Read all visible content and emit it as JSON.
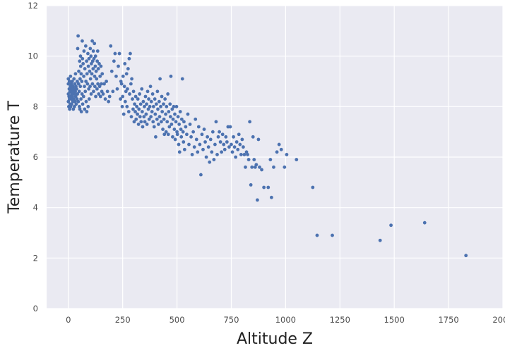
{
  "chart_data": {
    "type": "scatter",
    "title": "",
    "xlabel": "Altitude Z",
    "ylabel": "Temperature T",
    "xlim": [
      -100,
      2000
    ],
    "ylim": [
      0,
      12
    ],
    "xticks": [
      0,
      250,
      500,
      750,
      1000,
      1250,
      1500,
      1750,
      2000
    ],
    "yticks": [
      0,
      2,
      4,
      6,
      8,
      10,
      12
    ],
    "xtick_labels": [
      "0",
      "250",
      "500",
      "750",
      "1000",
      "1250",
      "1500",
      "1750",
      "2000"
    ],
    "ytick_labels": [
      "0",
      "2",
      "4",
      "6",
      "8",
      "10",
      "12"
    ],
    "grid": true,
    "colors": {
      "background": "#eaeaf2",
      "grid": "#ffffff",
      "point": "#4c72b0"
    },
    "points": [
      [
        0,
        8.2
      ],
      [
        0,
        8.5
      ],
      [
        0,
        8.9
      ],
      [
        0,
        9.1
      ],
      [
        2,
        8.0
      ],
      [
        3,
        8.4
      ],
      [
        4,
        8.7
      ],
      [
        5,
        8.3
      ],
      [
        5,
        9.0
      ],
      [
        6,
        7.9
      ],
      [
        7,
        8.6
      ],
      [
        8,
        8.1
      ],
      [
        9,
        8.8
      ],
      [
        10,
        8.4
      ],
      [
        10,
        9.2
      ],
      [
        11,
        8.0
      ],
      [
        12,
        8.6
      ],
      [
        13,
        8.3
      ],
      [
        14,
        8.9
      ],
      [
        15,
        8.5
      ],
      [
        16,
        8.1
      ],
      [
        17,
        8.7
      ],
      [
        18,
        9.0
      ],
      [
        19,
        8.4
      ],
      [
        20,
        8.2
      ],
      [
        21,
        8.8
      ],
      [
        22,
        8.5
      ],
      [
        23,
        7.9
      ],
      [
        24,
        8.6
      ],
      [
        25,
        8.3
      ],
      [
        26,
        9.1
      ],
      [
        27,
        8.7
      ],
      [
        28,
        8.0
      ],
      [
        29,
        8.5
      ],
      [
        30,
        8.9
      ],
      [
        31,
        8.2
      ],
      [
        32,
        8.6
      ],
      [
        33,
        9.3
      ],
      [
        34,
        8.4
      ],
      [
        35,
        8.8
      ],
      [
        36,
        8.1
      ],
      [
        38,
        8.7
      ],
      [
        40,
        8.3
      ],
      [
        41,
        9.0
      ],
      [
        42,
        8.5
      ],
      [
        43,
        10.3
      ],
      [
        45,
        10.8
      ],
      [
        46,
        8.2
      ],
      [
        47,
        8.9
      ],
      [
        48,
        9.4
      ],
      [
        50,
        8.6
      ],
      [
        51,
        8.0
      ],
      [
        52,
        9.8
      ],
      [
        53,
        7.9
      ],
      [
        54,
        9.1
      ],
      [
        55,
        8.8
      ],
      [
        56,
        10.0
      ],
      [
        57,
        9.6
      ],
      [
        58,
        8.3
      ],
      [
        59,
        9.3
      ],
      [
        60,
        7.8
      ],
      [
        62,
        9.0
      ],
      [
        63,
        8.5
      ],
      [
        64,
        10.6
      ],
      [
        65,
        9.9
      ],
      [
        66,
        8.1
      ],
      [
        68,
        9.7
      ],
      [
        70,
        8.4
      ],
      [
        71,
        9.2
      ],
      [
        72,
        10.2
      ],
      [
        74,
        8.8
      ],
      [
        75,
        7.9
      ],
      [
        76,
        9.5
      ],
      [
        78,
        8.6
      ],
      [
        80,
        10.4
      ],
      [
        81,
        9.0
      ],
      [
        82,
        8.2
      ],
      [
        84,
        9.8
      ],
      [
        85,
        7.8
      ],
      [
        86,
        9.3
      ],
      [
        88,
        8.9
      ],
      [
        90,
        10.1
      ],
      [
        91,
        8.0
      ],
      [
        92,
        9.6
      ],
      [
        94,
        8.7
      ],
      [
        95,
        9.9
      ],
      [
        96,
        8.3
      ],
      [
        98,
        9.4
      ],
      [
        100,
        8.8
      ],
      [
        101,
        10.3
      ],
      [
        102,
        9.1
      ],
      [
        104,
        10.0
      ],
      [
        105,
        8.5
      ],
      [
        106,
        9.7
      ],
      [
        108,
        9.3
      ],
      [
        110,
        10.6
      ],
      [
        111,
        8.9
      ],
      [
        112,
        9.8
      ],
      [
        114,
        9.5
      ],
      [
        115,
        10.2
      ],
      [
        116,
        8.6
      ],
      [
        118,
        9.9
      ],
      [
        120,
        10.5
      ],
      [
        121,
        9.2
      ],
      [
        122,
        8.8
      ],
      [
        124,
        9.6
      ],
      [
        125,
        10.0
      ],
      [
        126,
        8.4
      ],
      [
        128,
        9.4
      ],
      [
        130,
        9.1
      ],
      [
        132,
        8.7
      ],
      [
        133,
        9.8
      ],
      [
        135,
        10.2
      ],
      [
        136,
        8.9
      ],
      [
        138,
        9.5
      ],
      [
        140,
        8.5
      ],
      [
        142,
        9.7
      ],
      [
        144,
        8.8
      ],
      [
        146,
        9.2
      ],
      [
        148,
        8.4
      ],
      [
        150,
        9.6
      ],
      [
        152,
        8.9
      ],
      [
        154,
        8.6
      ],
      [
        156,
        9.3
      ],
      [
        160,
        8.5
      ],
      [
        165,
        8.9
      ],
      [
        170,
        8.3
      ],
      [
        175,
        9.0
      ],
      [
        180,
        8.6
      ],
      [
        185,
        8.2
      ],
      [
        190,
        8.4
      ],
      [
        195,
        10.4
      ],
      [
        200,
        9.4
      ],
      [
        205,
        8.6
      ],
      [
        210,
        9.8
      ],
      [
        215,
        10.1
      ],
      [
        220,
        9.2
      ],
      [
        225,
        8.7
      ],
      [
        230,
        9.6
      ],
      [
        235,
        10.1
      ],
      [
        240,
        8.3
      ],
      [
        242,
        9.0
      ],
      [
        245,
        8.9
      ],
      [
        248,
        8.0
      ],
      [
        250,
        8.4
      ],
      [
        252,
        9.2
      ],
      [
        255,
        7.7
      ],
      [
        258,
        8.8
      ],
      [
        260,
        9.7
      ],
      [
        262,
        8.2
      ],
      [
        265,
        8.6
      ],
      [
        268,
        9.3
      ],
      [
        270,
        8.0
      ],
      [
        272,
        8.7
      ],
      [
        275,
        9.5
      ],
      [
        278,
        7.8
      ],
      [
        280,
        9.9
      ],
      [
        282,
        8.5
      ],
      [
        285,
        10.1
      ],
      [
        288,
        8.9
      ],
      [
        290,
        7.6
      ],
      [
        292,
        9.1
      ],
      [
        295,
        8.3
      ],
      [
        298,
        7.9
      ],
      [
        300,
        8.6
      ],
      [
        303,
        7.4
      ],
      [
        305,
        8.1
      ],
      [
        308,
        7.8
      ],
      [
        310,
        8.4
      ],
      [
        312,
        7.5
      ],
      [
        315,
        8.0
      ],
      [
        318,
        7.7
      ],
      [
        320,
        8.3
      ],
      [
        323,
        7.3
      ],
      [
        325,
        7.9
      ],
      [
        328,
        8.5
      ],
      [
        330,
        7.6
      ],
      [
        333,
        8.1
      ],
      [
        335,
        7.4
      ],
      [
        338,
        8.7
      ],
      [
        340,
        7.8
      ],
      [
        342,
        7.2
      ],
      [
        345,
        8.2
      ],
      [
        348,
        7.6
      ],
      [
        350,
        8.0
      ],
      [
        352,
        7.4
      ],
      [
        355,
        8.4
      ],
      [
        358,
        7.7
      ],
      [
        360,
        8.1
      ],
      [
        362,
        7.3
      ],
      [
        365,
        8.6
      ],
      [
        368,
        7.9
      ],
      [
        370,
        8.3
      ],
      [
        372,
        7.5
      ],
      [
        375,
        8.0
      ],
      [
        378,
        8.8
      ],
      [
        380,
        7.6
      ],
      [
        382,
        8.2
      ],
      [
        385,
        7.8
      ],
      [
        388,
        8.5
      ],
      [
        390,
        7.4
      ],
      [
        392,
        8.0
      ],
      [
        395,
        7.2
      ],
      [
        398,
        8.3
      ],
      [
        400,
        7.7
      ],
      [
        402,
        6.8
      ],
      [
        405,
        8.1
      ],
      [
        408,
        7.5
      ],
      [
        410,
        8.6
      ],
      [
        412,
        7.9
      ],
      [
        415,
        7.3
      ],
      [
        418,
        8.2
      ],
      [
        420,
        7.6
      ],
      [
        422,
        9.1
      ],
      [
        425,
        8.0
      ],
      [
        428,
        7.4
      ],
      [
        430,
        8.4
      ],
      [
        432,
        7.8
      ],
      [
        435,
        7.1
      ],
      [
        438,
        8.1
      ],
      [
        440,
        7.5
      ],
      [
        442,
        6.9
      ],
      [
        445,
        8.3
      ],
      [
        448,
        7.7
      ],
      [
        450,
        7.0
      ],
      [
        452,
        8.0
      ],
      [
        455,
        7.4
      ],
      [
        458,
        8.5
      ],
      [
        460,
        6.9
      ],
      [
        462,
        7.8
      ],
      [
        465,
        7.2
      ],
      [
        468,
        8.1
      ],
      [
        470,
        7.6
      ],
      [
        472,
        9.2
      ],
      [
        475,
        7.3
      ],
      [
        478,
        7.9
      ],
      [
        480,
        6.8
      ],
      [
        482,
        7.5
      ],
      [
        485,
        8.0
      ],
      [
        488,
        7.1
      ],
      [
        490,
        7.7
      ],
      [
        492,
        6.7
      ],
      [
        495,
        7.4
      ],
      [
        498,
        8.0
      ],
      [
        500,
        7.0
      ],
      [
        502,
        6.9
      ],
      [
        505,
        7.6
      ],
      [
        508,
        6.5
      ],
      [
        510,
        7.3
      ],
      [
        512,
        6.2
      ],
      [
        515,
        7.8
      ],
      [
        518,
        7.1
      ],
      [
        520,
        6.8
      ],
      [
        522,
        7.5
      ],
      [
        525,
        9.1
      ],
      [
        528,
        7.0
      ],
      [
        530,
        6.6
      ],
      [
        532,
        7.4
      ],
      [
        535,
        6.3
      ],
      [
        540,
        7.2
      ],
      [
        545,
        6.9
      ],
      [
        550,
        7.7
      ],
      [
        555,
        6.5
      ],
      [
        560,
        7.3
      ],
      [
        565,
        6.8
      ],
      [
        570,
        6.1
      ],
      [
        575,
        7.0
      ],
      [
        580,
        6.4
      ],
      [
        585,
        7.5
      ],
      [
        590,
        6.7
      ],
      [
        595,
        6.2
      ],
      [
        600,
        7.2
      ],
      [
        605,
        6.5
      ],
      [
        610,
        5.3
      ],
      [
        615,
        6.9
      ],
      [
        620,
        6.3
      ],
      [
        625,
        7.1
      ],
      [
        630,
        6.6
      ],
      [
        635,
        6.0
      ],
      [
        640,
        6.8
      ],
      [
        645,
        6.4
      ],
      [
        650,
        5.8
      ],
      [
        655,
        6.7
      ],
      [
        660,
        6.2
      ],
      [
        665,
        7.0
      ],
      [
        670,
        5.9
      ],
      [
        675,
        6.5
      ],
      [
        680,
        7.4
      ],
      [
        685,
        6.1
      ],
      [
        690,
        6.8
      ],
      [
        695,
        7.0
      ],
      [
        700,
        6.6
      ],
      [
        705,
        6.2
      ],
      [
        710,
        6.9
      ],
      [
        715,
        6.5
      ],
      [
        720,
        6.3
      ],
      [
        725,
        6.8
      ],
      [
        730,
        6.6
      ],
      [
        735,
        7.2
      ],
      [
        740,
        6.4
      ],
      [
        745,
        7.2
      ],
      [
        750,
        6.5
      ],
      [
        755,
        6.2
      ],
      [
        760,
        6.8
      ],
      [
        765,
        6.4
      ],
      [
        770,
        6.0
      ],
      [
        775,
        6.6
      ],
      [
        780,
        6.3
      ],
      [
        785,
        6.9
      ],
      [
        790,
        6.5
      ],
      [
        795,
        6.1
      ],
      [
        800,
        6.7
      ],
      [
        805,
        6.4
      ],
      [
        810,
        6.1
      ],
      [
        815,
        5.6
      ],
      [
        820,
        6.2
      ],
      [
        825,
        6.1
      ],
      [
        830,
        5.9
      ],
      [
        835,
        7.4
      ],
      [
        840,
        4.9
      ],
      [
        845,
        5.6
      ],
      [
        850,
        6.8
      ],
      [
        855,
        5.9
      ],
      [
        860,
        5.6
      ],
      [
        865,
        5.7
      ],
      [
        870,
        4.3
      ],
      [
        875,
        6.7
      ],
      [
        880,
        5.6
      ],
      [
        890,
        5.5
      ],
      [
        900,
        4.8
      ],
      [
        920,
        4.8
      ],
      [
        930,
        5.9
      ],
      [
        935,
        4.4
      ],
      [
        945,
        5.6
      ],
      [
        960,
        6.2
      ],
      [
        970,
        6.5
      ],
      [
        980,
        6.3
      ],
      [
        995,
        5.6
      ],
      [
        1005,
        6.1
      ],
      [
        1050,
        5.9
      ],
      [
        1125,
        4.8
      ],
      [
        1145,
        2.9
      ],
      [
        1215,
        2.9
      ],
      [
        1435,
        2.7
      ],
      [
        1485,
        3.3
      ],
      [
        1640,
        3.4
      ],
      [
        1830,
        2.1
      ]
    ]
  }
}
